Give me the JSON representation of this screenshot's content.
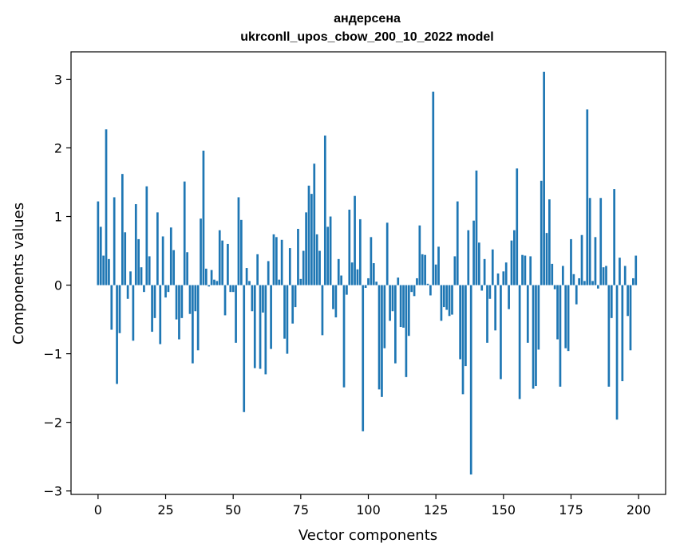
{
  "chart_data": {
    "type": "bar",
    "title_line1": "андерсена",
    "title_line2": "ukrconll_upos_cbow_200_10_2022 model",
    "xlabel": "Vector components",
    "ylabel": "Components values",
    "xlim": [
      -10,
      210
    ],
    "ylim": [
      -3.05,
      3.4
    ],
    "xticks": [
      0,
      25,
      50,
      75,
      100,
      125,
      150,
      175,
      200
    ],
    "yticks": [
      -3,
      -2,
      -1,
      0,
      1,
      2,
      3
    ],
    "ytick_labels": [
      "−3",
      "−2",
      "−1",
      "0",
      "1",
      "2",
      "3"
    ],
    "bar_color": "#1f77b4",
    "grid": false,
    "values": [
      1.22,
      0.85,
      0.43,
      2.27,
      0.38,
      -0.65,
      1.28,
      -1.44,
      -0.7,
      1.62,
      0.77,
      -0.2,
      0.2,
      -0.81,
      1.18,
      0.67,
      0.26,
      -0.1,
      1.44,
      0.42,
      -0.68,
      -0.48,
      1.06,
      -0.86,
      0.71,
      -0.18,
      -0.1,
      0.84,
      0.51,
      -0.5,
      -0.79,
      -0.48,
      1.51,
      0.48,
      -0.42,
      -1.14,
      -0.38,
      -0.95,
      0.97,
      1.96,
      0.24,
      -0.02,
      0.22,
      0.08,
      0.06,
      0.8,
      0.65,
      -0.44,
      0.6,
      -0.1,
      -0.1,
      -0.84,
      1.28,
      0.95,
      -1.85,
      0.25,
      0.06,
      -0.38,
      -1.21,
      0.45,
      -1.22,
      -0.4,
      -1.3,
      0.35,
      -0.93,
      0.74,
      0.7,
      0.08,
      0.66,
      -0.78,
      -1.0,
      0.54,
      -0.56,
      -0.32,
      0.82,
      0.09,
      0.5,
      1.06,
      1.45,
      1.33,
      1.77,
      0.74,
      0.5,
      -0.73,
      2.18,
      0.85,
      1.0,
      -0.35,
      -0.47,
      0.38,
      0.14,
      -1.49,
      -0.14,
      1.1,
      0.33,
      1.3,
      0.23,
      0.96,
      -2.13,
      -0.04,
      0.1,
      0.7,
      0.32,
      0.05,
      -1.52,
      -1.63,
      -0.92,
      0.91,
      -0.52,
      -0.38,
      -1.14,
      0.11,
      -0.61,
      -0.62,
      -1.34,
      -0.74,
      -0.1,
      -0.16,
      0.1,
      0.87,
      0.45,
      0.44,
      0.02,
      -0.15,
      2.82,
      0.3,
      0.56,
      -0.52,
      -0.32,
      -0.36,
      -0.45,
      -0.43,
      0.42,
      1.22,
      -1.08,
      -1.59,
      -1.18,
      0.8,
      -2.76,
      0.94,
      1.67,
      0.62,
      -0.08,
      0.38,
      -0.84,
      -0.2,
      0.52,
      -0.66,
      0.17,
      -1.37,
      0.2,
      0.33,
      -0.35,
      0.65,
      0.8,
      1.7,
      -1.66,
      0.44,
      0.43,
      -0.84,
      0.42,
      -1.51,
      -1.47,
      -0.94,
      1.52,
      3.11,
      0.76,
      1.25,
      0.31,
      -0.06,
      -0.79,
      -1.48,
      0.28,
      -0.92,
      -0.96,
      0.67,
      0.16,
      -0.28,
      0.1,
      0.73,
      0.06,
      2.56,
      1.27,
      0.06,
      0.7,
      -0.05,
      1.27,
      0.26,
      0.28,
      -1.48,
      -0.48,
      1.4,
      -1.96,
      0.4,
      -1.4,
      0.28,
      -0.45,
      -0.95,
      0.1,
      0.43
    ]
  }
}
